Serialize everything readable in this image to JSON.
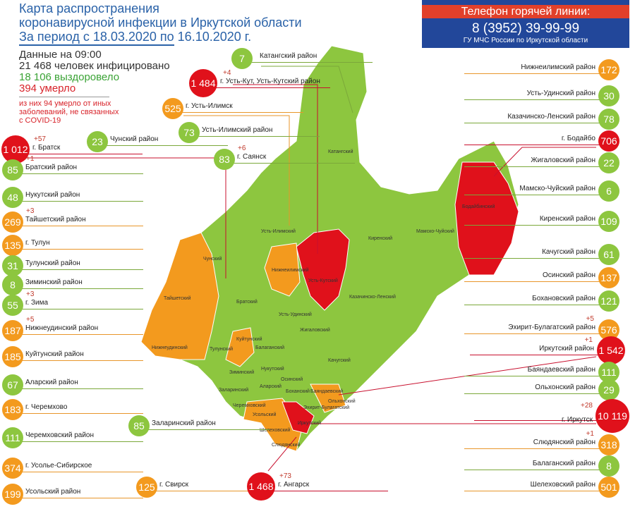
{
  "header": {
    "title_lines": [
      "Карта распространения",
      "коронавирусной инфекции в Иркутской области",
      "За период с 18.03.2020 по 16.10.2020 г."
    ]
  },
  "stats": {
    "time": "Данные на 09:00",
    "infected": "21 468  человек инфицировано",
    "recovered": "18 106  выздоровело",
    "died": "394 умерло",
    "note_lines": [
      "из них 94 умерло от иных",
      "заболеваний, не связанных",
      "с COVID-19"
    ]
  },
  "hotline": {
    "title": "Телефон горячей линии:",
    "phone": "8 (3952) 39-99-99",
    "org": "ГУ МЧС России по Иркутской области"
  },
  "colors": {
    "green": "#8dc63f",
    "orange": "#f39a1e",
    "red": "#e0111b",
    "title": "#2a62a8",
    "hotline_bg": "#22479a",
    "hotline_bar": "#e2402a"
  },
  "callouts": [
    {
      "value": "1 012",
      "label": "г. Братск",
      "delta": "+57",
      "level": "red"
    },
    {
      "value": "85",
      "label": "Братский район",
      "delta": "+1",
      "level": "green"
    },
    {
      "value": "48",
      "label": "Нукутский район",
      "level": "green"
    },
    {
      "value": "269",
      "label": "Тайшетский район",
      "delta": "+3",
      "level": "orange"
    },
    {
      "value": "135",
      "label": "г. Тулун",
      "level": "orange"
    },
    {
      "value": "31",
      "label": "Тулунский район",
      "level": "green"
    },
    {
      "value": "8",
      "label": "Зиминский район",
      "level": "green"
    },
    {
      "value": "55",
      "label": "г. Зима",
      "delta": "+3",
      "level": "green"
    },
    {
      "value": "187",
      "label": "Нижнеудинский район",
      "delta": "+5",
      "level": "orange"
    },
    {
      "value": "185",
      "label": "Куйтунский район",
      "level": "orange"
    },
    {
      "value": "67",
      "label": "Аларский район",
      "level": "green"
    },
    {
      "value": "183",
      "label": "г. Черемхово",
      "level": "orange"
    },
    {
      "value": "111",
      "label": "Черемховский район",
      "level": "green"
    },
    {
      "value": "374",
      "label": "г. Усолье-Сибирское",
      "level": "orange"
    },
    {
      "value": "199",
      "label": "Усольский район",
      "level": "orange"
    },
    {
      "value": "7",
      "label": "Катангский район",
      "level": "green"
    },
    {
      "value": "1 484",
      "label": "г. Усть-Кут, Усть-Кутский район",
      "delta": "+4",
      "level": "red"
    },
    {
      "value": "525",
      "label": "г. Усть-Илимск",
      "level": "orange"
    },
    {
      "value": "73",
      "label": "Усть-Илимский район",
      "level": "green"
    },
    {
      "value": "23",
      "label": "Чунский район",
      "level": "green"
    },
    {
      "value": "83",
      "label": "г. Саянск",
      "delta": "+6",
      "level": "green"
    },
    {
      "value": "85",
      "label": "Заларинский район",
      "level": "green"
    },
    {
      "value": "125",
      "label": "г. Свирск",
      "level": "orange"
    },
    {
      "value": "1 468",
      "label": "г. Ангарск",
      "delta": "+73",
      "level": "red"
    },
    {
      "value": "172",
      "label": "Нижнеилимский район",
      "level": "orange"
    },
    {
      "value": "30",
      "label": "Усть-Удинский район",
      "level": "green"
    },
    {
      "value": "78",
      "label": "Казачинско-Ленский район",
      "level": "green"
    },
    {
      "value": "706",
      "label": "г. Бодайбо",
      "level": "red"
    },
    {
      "value": "22",
      "label": "Жигаловский район",
      "level": "green"
    },
    {
      "value": "6",
      "label": "Мамско-Чуйский район",
      "level": "green"
    },
    {
      "value": "109",
      "label": "Киренский район",
      "level": "green"
    },
    {
      "value": "61",
      "label": "Качугский район",
      "level": "green"
    },
    {
      "value": "137",
      "label": "Осинский район",
      "level": "orange"
    },
    {
      "value": "121",
      "label": "Бохановский район",
      "level": "green"
    },
    {
      "value": "576",
      "label": "Эхирит-Булагатский район",
      "delta": "+5",
      "level": "orange"
    },
    {
      "value": "1 542",
      "label": "Иркутский район",
      "delta": "+1",
      "level": "red"
    },
    {
      "value": "111",
      "label": "Баяндаевский район",
      "level": "green"
    },
    {
      "value": "29",
      "label": "Ольхонский район",
      "level": "green"
    },
    {
      "value": "10 119",
      "label": "г. Иркутск",
      "delta": "+28",
      "level": "red"
    },
    {
      "value": "318",
      "label": "Слюдянский район",
      "delta": "+1",
      "level": "orange"
    },
    {
      "value": "8",
      "label": "Балаганский район",
      "level": "green"
    },
    {
      "value": "501",
      "label": "Шелеховский район",
      "level": "orange"
    }
  ],
  "map_labels": [
    "Катангский",
    "Усть-Илимский",
    "Нижнеилимский",
    "Усть-Кутский",
    "Киренский",
    "Мамско-Чуйский",
    "Бодайбинский",
    "Чунский",
    "Братский",
    "Тайшетский",
    "Нижнеудинский",
    "Тулунский",
    "Куйтунский",
    "Балаганский",
    "Усть-Удинский",
    "Жигаловский",
    "Казачинско-Ленский",
    "Качугский",
    "Нукутский",
    "Зиминский",
    "Осинский",
    "Заларинский",
    "Аларский",
    "Боханский",
    "Баяндаевский",
    "Ольхонский",
    "Эхирит-Булагатский",
    "Черемховский",
    "Усольский",
    "Иркутский",
    "Шелеховский",
    "Слюдянский"
  ]
}
